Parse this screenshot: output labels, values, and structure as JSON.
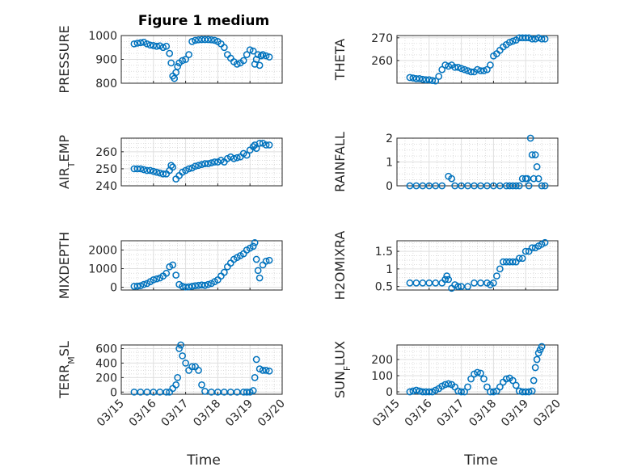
{
  "figure": {
    "title": "Figure 1 medium",
    "xlabel": "Time",
    "marker_color": "#0072BD",
    "x_ticks": [
      "03/15",
      "03/16",
      "03/17",
      "03/18",
      "03/19",
      "03/20"
    ]
  },
  "chart_data": [
    {
      "type": "scatter",
      "ylabel": "PRESSURE",
      "xlim": [
        0,
        5
      ],
      "ylim": [
        800,
        1000
      ],
      "yticks": [
        "800",
        "900",
        "1000"
      ],
      "series": [
        {
          "x": [
            0.4,
            0.5,
            0.6,
            0.7,
            0.8,
            0.9,
            1.0,
            1.1,
            1.2,
            1.3,
            1.4,
            1.5,
            1.55,
            1.6,
            1.65,
            1.7,
            1.75,
            1.8,
            1.9,
            2.0,
            2.1,
            2.2,
            2.3,
            2.4,
            2.5,
            2.6,
            2.7,
            2.8,
            2.9,
            3.0,
            3.1,
            3.2,
            3.3,
            3.4,
            3.5,
            3.6,
            3.7,
            3.8,
            3.9,
            4.0,
            4.1,
            4.15,
            4.2,
            4.25,
            4.3,
            4.35,
            4.4,
            4.5,
            4.6
          ],
          "y": [
            965,
            968,
            970,
            972,
            965,
            960,
            958,
            955,
            957,
            950,
            955,
            925,
            885,
            830,
            820,
            845,
            870,
            885,
            895,
            900,
            920,
            975,
            980,
            982,
            983,
            983,
            983,
            982,
            980,
            975,
            965,
            950,
            920,
            905,
            890,
            880,
            885,
            895,
            920,
            940,
            935,
            880,
            900,
            920,
            875,
            915,
            920,
            915,
            910
          ]
        }
      ]
    },
    {
      "type": "scatter",
      "ylabel": "THETA",
      "xlim": [
        0,
        5
      ],
      "ylim": [
        250,
        271
      ],
      "yticks": [
        "260",
        "270"
      ],
      "series": [
        {
          "x": [
            0.4,
            0.5,
            0.6,
            0.7,
            0.8,
            0.9,
            1.0,
            1.1,
            1.2,
            1.3,
            1.4,
            1.5,
            1.6,
            1.7,
            1.8,
            1.9,
            2.0,
            2.1,
            2.2,
            2.3,
            2.4,
            2.5,
            2.6,
            2.7,
            2.8,
            2.9,
            3.0,
            3.1,
            3.2,
            3.3,
            3.4,
            3.5,
            3.6,
            3.7,
            3.8,
            3.9,
            4.0,
            4.1,
            4.2,
            4.3,
            4.4,
            4.5,
            4.6
          ],
          "y": [
            252.5,
            252.3,
            252,
            252,
            251.7,
            251.5,
            251.5,
            251.2,
            251,
            253,
            256,
            258,
            257.5,
            258,
            257,
            257,
            256.5,
            256,
            255.5,
            255,
            255,
            256,
            255.5,
            255.5,
            256,
            258,
            262,
            263,
            264.5,
            266,
            267,
            268,
            268.5,
            269,
            270,
            270,
            270,
            270,
            269.5,
            269.5,
            270,
            269.5,
            269.5
          ]
        }
      ]
    },
    {
      "type": "scatter",
      "ylabel": "AIR_TEMP",
      "xlim": [
        0,
        5
      ],
      "ylim": [
        240,
        268
      ],
      "yticks": [
        "240",
        "250",
        "260"
      ],
      "series": [
        {
          "x": [
            0.4,
            0.5,
            0.6,
            0.7,
            0.8,
            0.9,
            1.0,
            1.1,
            1.2,
            1.3,
            1.4,
            1.5,
            1.55,
            1.6,
            1.7,
            1.8,
            1.9,
            2.0,
            2.1,
            2.2,
            2.3,
            2.4,
            2.5,
            2.6,
            2.7,
            2.8,
            2.9,
            3.0,
            3.1,
            3.2,
            3.3,
            3.4,
            3.5,
            3.6,
            3.7,
            3.8,
            3.9,
            4.0,
            4.1,
            4.15,
            4.2,
            4.3,
            4.4,
            4.5,
            4.6
          ],
          "y": [
            250,
            250,
            250,
            249.5,
            249,
            249,
            248.5,
            248,
            247.5,
            247,
            247,
            249,
            252,
            251,
            244,
            246,
            248,
            249,
            250,
            250.5,
            251.5,
            252,
            252.5,
            253,
            253,
            253.5,
            254,
            254,
            255,
            254,
            256,
            257,
            256,
            256.5,
            257,
            259,
            258,
            261,
            263,
            264,
            262,
            265,
            265,
            264,
            264
          ]
        }
      ]
    },
    {
      "type": "scatter",
      "ylabel": "RAINFALL",
      "xlim": [
        0,
        5
      ],
      "ylim": [
        0,
        2
      ],
      "yticks": [
        "0",
        "1",
        "2"
      ],
      "series": [
        {
          "x": [
            0.4,
            0.6,
            0.8,
            1.0,
            1.2,
            1.4,
            1.6,
            1.7,
            1.8,
            2.0,
            2.2,
            2.4,
            2.6,
            2.8,
            3.0,
            3.2,
            3.4,
            3.5,
            3.6,
            3.7,
            3.8,
            3.9,
            4.0,
            4.05,
            4.1,
            4.15,
            4.2,
            4.25,
            4.3,
            4.35,
            4.4,
            4.5,
            4.6
          ],
          "y": [
            0,
            0,
            0,
            0,
            0,
            0,
            0.4,
            0.3,
            0,
            0,
            0,
            0,
            0,
            0,
            0,
            0,
            0,
            0,
            0,
            0,
            0,
            0.3,
            0.3,
            0.3,
            0,
            2.0,
            1.3,
            0.3,
            1.3,
            0.8,
            0.3,
            0,
            0
          ]
        }
      ]
    },
    {
      "type": "scatter",
      "ylabel": "MIXDEPTH",
      "xlim": [
        0,
        5
      ],
      "ylim": [
        -150,
        2500
      ],
      "yticks": [
        "0",
        "1000",
        "2000"
      ],
      "series": [
        {
          "x": [
            0.4,
            0.5,
            0.6,
            0.7,
            0.8,
            0.9,
            1.0,
            1.1,
            1.2,
            1.3,
            1.4,
            1.5,
            1.6,
            1.7,
            1.8,
            1.9,
            2.0,
            2.1,
            2.2,
            2.3,
            2.4,
            2.5,
            2.6,
            2.7,
            2.8,
            2.9,
            3.0,
            3.1,
            3.2,
            3.3,
            3.4,
            3.5,
            3.6,
            3.7,
            3.8,
            3.9,
            4.0,
            4.1,
            4.15,
            4.2,
            4.25,
            4.3,
            4.4,
            4.5,
            4.6
          ],
          "y": [
            50,
            60,
            80,
            150,
            200,
            300,
            400,
            450,
            500,
            600,
            750,
            1100,
            1200,
            650,
            150,
            50,
            10,
            20,
            50,
            80,
            100,
            120,
            100,
            150,
            200,
            300,
            400,
            600,
            800,
            1100,
            1300,
            1500,
            1600,
            1700,
            1800,
            2000,
            2100,
            2200,
            2400,
            1500,
            900,
            500,
            1200,
            1400,
            1450
          ]
        }
      ]
    },
    {
      "type": "scatter",
      "ylabel": "H2OMIXRA",
      "xlim": [
        0,
        5
      ],
      "ylim": [
        0.4,
        1.8
      ],
      "yticks": [
        "0.5",
        "1",
        "1.5"
      ],
      "series": [
        {
          "x": [
            0.4,
            0.6,
            0.8,
            1.0,
            1.2,
            1.4,
            1.5,
            1.55,
            1.6,
            1.7,
            1.8,
            1.9,
            2.0,
            2.2,
            2.4,
            2.6,
            2.8,
            2.9,
            3.0,
            3.1,
            3.2,
            3.3,
            3.4,
            3.5,
            3.6,
            3.7,
            3.8,
            3.9,
            4.0,
            4.1,
            4.2,
            4.3,
            4.4,
            4.5,
            4.6
          ],
          "y": [
            0.6,
            0.6,
            0.6,
            0.6,
            0.6,
            0.6,
            0.7,
            0.8,
            0.7,
            0.45,
            0.55,
            0.5,
            0.5,
            0.5,
            0.6,
            0.6,
            0.6,
            0.55,
            0.6,
            0.8,
            1.0,
            1.2,
            1.2,
            1.2,
            1.2,
            1.2,
            1.3,
            1.3,
            1.5,
            1.5,
            1.6,
            1.6,
            1.65,
            1.7,
            1.75
          ]
        }
      ]
    },
    {
      "type": "scatter",
      "ylabel": "TERR_MSL",
      "xlim": [
        0,
        5
      ],
      "ylim": [
        -30,
        650
      ],
      "yticks": [
        "0",
        "200",
        "400",
        "600"
      ],
      "series": [
        {
          "x": [
            0.4,
            0.6,
            0.8,
            1.0,
            1.2,
            1.4,
            1.5,
            1.6,
            1.7,
            1.75,
            1.8,
            1.85,
            1.9,
            2.0,
            2.1,
            2.2,
            2.3,
            2.4,
            2.5,
            2.6,
            2.8,
            3.0,
            3.2,
            3.4,
            3.6,
            3.8,
            3.9,
            4.0,
            4.1,
            4.15,
            4.2,
            4.3,
            4.4,
            4.5,
            4.6
          ],
          "y": [
            0,
            0,
            0,
            0,
            0,
            0,
            0,
            50,
            100,
            200,
            600,
            650,
            500,
            400,
            300,
            350,
            350,
            300,
            100,
            10,
            0,
            0,
            0,
            0,
            0,
            0,
            0,
            0,
            20,
            200,
            450,
            320,
            300,
            300,
            290
          ]
        }
      ]
    },
    {
      "type": "scatter",
      "ylabel": "SUN_FLUX",
      "xlim": [
        0,
        5
      ],
      "ylim": [
        -15,
        290
      ],
      "yticks": [
        "0",
        "100",
        "200"
      ],
      "series": [
        {
          "x": [
            0.4,
            0.5,
            0.6,
            0.7,
            0.8,
            0.9,
            1.0,
            1.1,
            1.2,
            1.3,
            1.4,
            1.5,
            1.6,
            1.7,
            1.8,
            1.9,
            2.0,
            2.1,
            2.2,
            2.3,
            2.4,
            2.5,
            2.6,
            2.7,
            2.8,
            2.9,
            3.0,
            3.1,
            3.2,
            3.3,
            3.4,
            3.5,
            3.6,
            3.7,
            3.8,
            3.9,
            4.0,
            4.1,
            4.2,
            4.25,
            4.3,
            4.35,
            4.4,
            4.45,
            4.5
          ],
          "y": [
            0,
            5,
            10,
            5,
            0,
            0,
            0,
            0,
            10,
            20,
            35,
            45,
            50,
            45,
            30,
            5,
            0,
            0,
            30,
            80,
            110,
            120,
            115,
            80,
            30,
            0,
            0,
            5,
            30,
            60,
            80,
            85,
            70,
            40,
            5,
            0,
            0,
            0,
            5,
            70,
            150,
            200,
            240,
            260,
            280
          ]
        }
      ]
    }
  ]
}
